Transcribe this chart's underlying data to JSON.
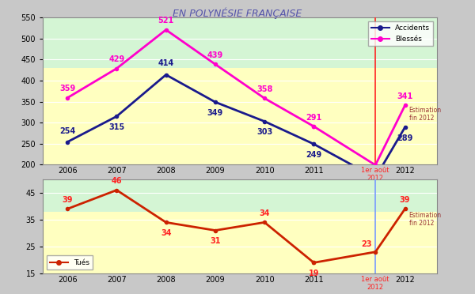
{
  "top_chart": {
    "years": [
      2006,
      2007,
      2008,
      2009,
      2010,
      2011
    ],
    "accidents": [
      254,
      315,
      414,
      349,
      303,
      249
    ],
    "blesses": [
      359,
      429,
      521,
      439,
      358,
      291
    ],
    "partial_accidents": 169,
    "partial_blesses": 199,
    "final_accidents": 289,
    "final_blesses": 341,
    "ylim": [
      200,
      550
    ],
    "yticks": [
      200,
      250,
      300,
      350,
      400,
      450,
      500,
      550
    ],
    "accidents_color": "#1a1a8c",
    "blesses_color": "#ff00cc",
    "vline_color": "#ff2222",
    "label_acc_color": "#1a1a8c",
    "label_ble_color": "#ff00cc",
    "partial_label_color": "#ff2222",
    "estimation_color": "#993333",
    "bg_green": "#d4f5d4",
    "bg_yellow": "#ffffc0",
    "green_threshold": 430
  },
  "bottom_chart": {
    "years": [
      2006,
      2007,
      2008,
      2009,
      2010,
      2011
    ],
    "tues": [
      39,
      46,
      34,
      31,
      34,
      19
    ],
    "partial_tues": 23,
    "final_tues": 39,
    "ylim": [
      15,
      50
    ],
    "yticks": [
      15,
      25,
      35,
      45
    ],
    "tues_color": "#cc2200",
    "vline_color": "#7799ff",
    "partial_label_color": "#ff2222",
    "estimation_color": "#993333",
    "bg_green": "#d4f5d4",
    "bg_yellow": "#ffffc0",
    "green_threshold": 38
  },
  "title": "EN POLYNÉSIE FRANÇAISE",
  "title_color": "#5555aa",
  "title_fontsize": 9,
  "fig_bg": "#c8c8c8"
}
